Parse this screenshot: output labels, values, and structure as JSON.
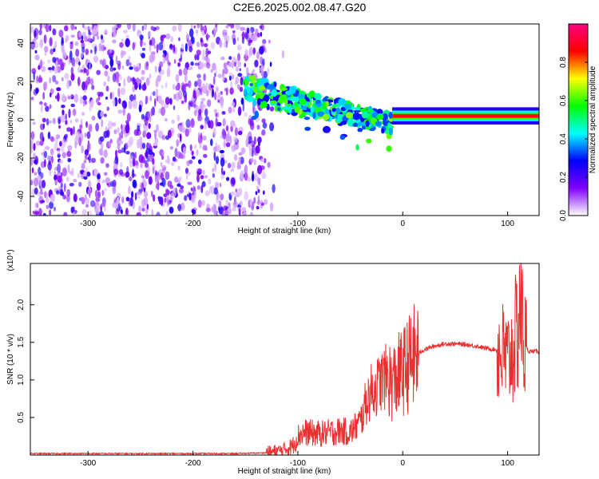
{
  "title": "C2E6.2025.002.08.47.G20",
  "chart_data": [
    {
      "type": "heatmap",
      "xlabel": "Height of straight line (km)",
      "ylabel": "Frequency (Hz)",
      "xlim": [
        -355,
        130
      ],
      "ylim": [
        -50,
        50
      ],
      "xticks": [
        -300,
        -200,
        -100,
        0,
        100
      ],
      "yticks": [
        -40,
        -20,
        0,
        20,
        40
      ],
      "colorbar": {
        "label": "Normalized spectral amplitude",
        "range": [
          0.0,
          1.0
        ],
        "ticks": [
          0.0,
          0.2,
          0.4,
          0.6,
          0.8
        ],
        "tick_labels": [
          "0.0",
          "0.2",
          "0.4",
          "0.6",
          "0.8"
        ],
        "colormap": [
          "#ffffff",
          "#8000ff",
          "#0000ff",
          "#00ffff",
          "#00ff00",
          "#ffff00",
          "#ff0000",
          "#ff0080"
        ]
      },
      "features": [
        {
          "region": "noise",
          "x": [
            -355,
            -130
          ],
          "y": [
            -50,
            50
          ],
          "level": 0.15
        },
        {
          "region": "signal_band",
          "x": [
            -150,
            -10
          ],
          "y_center": [
            16,
            -2
          ],
          "level": 0.4
        },
        {
          "region": "carrier_line",
          "x": [
            -10,
            130
          ],
          "y": 2,
          "level": 0.85
        }
      ]
    },
    {
      "type": "line",
      "xlabel": "Height of straight line (km)",
      "ylabel": "SNR (10 * v/v)",
      "multiplier": "(x10⁴)",
      "xlim": [
        -355,
        130
      ],
      "ylim": [
        0,
        2.55
      ],
      "xticks": [
        -300,
        -200,
        -100,
        0,
        100
      ],
      "yticks": [
        0.5,
        1.0,
        1.5,
        2.0
      ],
      "ytick_labels": [
        "0.5",
        "1.0",
        "1.5",
        "2.0"
      ],
      "series": [
        {
          "color": "#e83030",
          "x": [
            -355,
            -300,
            -250,
            -200,
            -160,
            -130,
            -115,
            -105,
            -100,
            -95,
            -90,
            -80,
            -70,
            -60,
            -50,
            -40,
            -35,
            -30,
            -25,
            -20,
            -15,
            -10,
            -5,
            0,
            5,
            10,
            20,
            30,
            40,
            50,
            60,
            70,
            80,
            90,
            95,
            100,
            105,
            110,
            112,
            115,
            120,
            130
          ],
          "y": [
            0.02,
            0.02,
            0.02,
            0.02,
            0.02,
            0.03,
            0.06,
            0.12,
            0.25,
            0.3,
            0.3,
            0.28,
            0.3,
            0.32,
            0.3,
            0.45,
            0.7,
            0.85,
            0.9,
            1.0,
            1.05,
            0.95,
            1.05,
            1.1,
            1.2,
            1.3,
            1.4,
            1.45,
            1.48,
            1.48,
            1.47,
            1.45,
            1.42,
            1.4,
            1.35,
            1.25,
            1.4,
            1.7,
            2.2,
            1.5,
            1.38,
            1.38
          ]
        }
      ]
    }
  ]
}
